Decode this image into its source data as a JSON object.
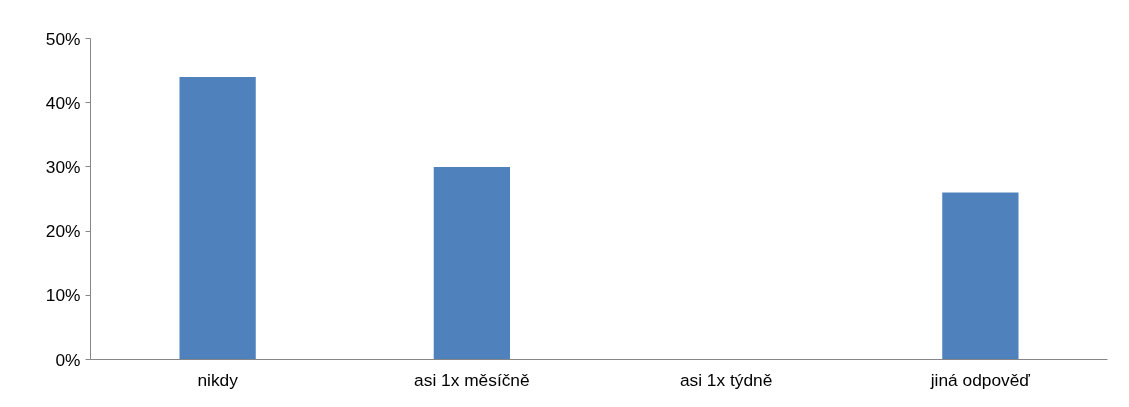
{
  "chart_data": {
    "type": "bar",
    "categories": [
      "nikdy",
      "asi 1x měsíčně",
      "asi 1x týdně",
      "jiná odpověď"
    ],
    "values": [
      44,
      30,
      0,
      26
    ],
    "color": "#4f81bd",
    "ylim": [
      0,
      50
    ],
    "yticks": [
      {
        "value": 0,
        "label": "0%"
      },
      {
        "value": 10,
        "label": "10%"
      },
      {
        "value": 20,
        "label": "20%"
      },
      {
        "value": 30,
        "label": "30%"
      },
      {
        "value": 40,
        "label": "40%"
      },
      {
        "value": 50,
        "label": "50%"
      }
    ],
    "grid": false
  }
}
